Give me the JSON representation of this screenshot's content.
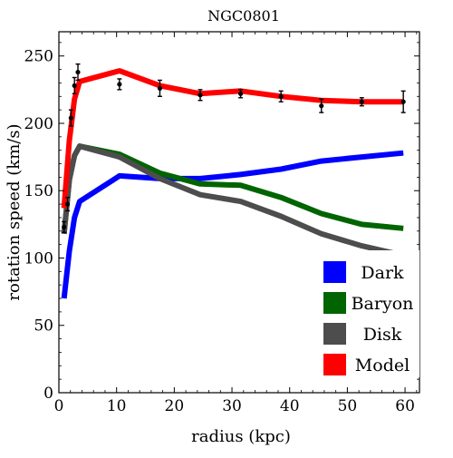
{
  "chart_data": {
    "type": "line",
    "title": "NGC0801",
    "xlabel": "radius (kpc)",
    "ylabel": "rotation speed (km/s)",
    "xlim": [
      0,
      62.5
    ],
    "ylim": [
      0,
      268
    ],
    "xticks": [
      0,
      10,
      20,
      30,
      40,
      50,
      60
    ],
    "yticks": [
      0,
      50,
      100,
      150,
      200,
      250
    ],
    "grid": false,
    "legend_position": "bottom-right",
    "series": [
      {
        "name": "Dark",
        "color": "#0000ff",
        "x": [
          0.9,
          1.8,
          2.7,
          3.6,
          10.5,
          17.5,
          24.5,
          31.5,
          38.5,
          45.5,
          52.5,
          59.7
        ],
        "y": [
          70,
          105,
          130,
          142,
          161,
          159,
          159,
          162,
          166,
          172,
          175,
          178
        ]
      },
      {
        "name": "Baryon",
        "color": "#006400",
        "x": [
          0.9,
          1.8,
          2.7,
          3.6,
          10.5,
          17.5,
          24.5,
          31.5,
          38.5,
          45.5,
          52.5,
          59.7
        ],
        "y": [
          118,
          158,
          176,
          183,
          177,
          163,
          155,
          154,
          145,
          133,
          125,
          122
        ]
      },
      {
        "name": "Disk",
        "color": "#4d4d4d",
        "x": [
          0.9,
          1.8,
          2.7,
          3.6,
          10.5,
          17.5,
          24.5,
          31.5,
          38.5,
          45.5,
          52.5,
          59.7
        ],
        "y": [
          118,
          158,
          176,
          183,
          175,
          159,
          147,
          142,
          131,
          118,
          109,
          102
        ]
      },
      {
        "name": "Model",
        "color": "#ff0000",
        "x": [
          0.9,
          1.8,
          2.7,
          3.6,
          10.5,
          17.5,
          24.5,
          31.5,
          38.5,
          45.5,
          52.5,
          59.7
        ],
        "y": [
          137,
          187,
          218,
          231,
          239,
          228,
          222,
          224,
          220,
          217,
          216,
          216
        ]
      }
    ],
    "observations": {
      "color": "#000000",
      "x": [
        0.9,
        1.5,
        2.1,
        2.7,
        3.3,
        10.5,
        17.5,
        24.5,
        31.5,
        38.5,
        45.5,
        52.5,
        59.7
      ],
      "y": [
        123,
        140,
        204,
        228,
        238,
        229,
        226,
        221,
        222,
        220,
        213,
        216,
        216
      ],
      "err": [
        4,
        5,
        6,
        6,
        6,
        4,
        6,
        4,
        3,
        4,
        5,
        3,
        8
      ]
    }
  }
}
